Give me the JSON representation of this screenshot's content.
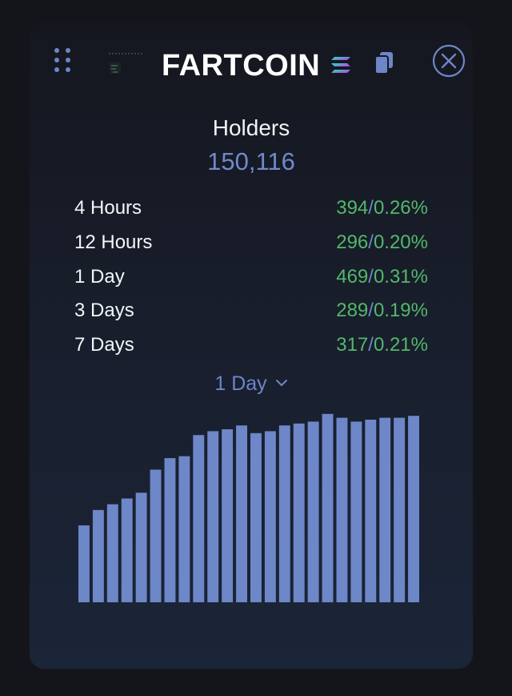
{
  "header": {
    "token_name": "FARTCOIN",
    "icons": {
      "drag": "drag-handle-icon",
      "logo": "token-logo",
      "chain": "solana-icon",
      "copy": "copy-icon",
      "close": "close-icon"
    }
  },
  "stat": {
    "title": "Holders",
    "value": "150,116"
  },
  "changes": [
    {
      "label": "4 Hours",
      "count": "394",
      "separator": "/",
      "percent": "0.26%"
    },
    {
      "label": "12 Hours",
      "count": "296",
      "separator": "/",
      "percent": "0.20%"
    },
    {
      "label": "1 Day",
      "count": "469",
      "separator": "/",
      "percent": "0.31%"
    },
    {
      "label": "3 Days",
      "count": "289",
      "separator": "/",
      "percent": "0.19%"
    },
    {
      "label": "7 Days",
      "count": "317",
      "separator": "/",
      "percent": "0.21%"
    }
  ],
  "period_select": {
    "selected": "1 Day"
  },
  "colors": {
    "accent": "#6c86c7",
    "positive": "#52b86a",
    "bar": "#6d87c8",
    "background": "#14151b"
  },
  "chart_data": {
    "type": "bar",
    "values": [
      40,
      48,
      51,
      54,
      57,
      69,
      75,
      76,
      87,
      89,
      90,
      92,
      88,
      89,
      92,
      93,
      94,
      98,
      96,
      94,
      95,
      96,
      96,
      97
    ],
    "ylim": [
      0,
      100
    ],
    "grid": false,
    "legend": "none"
  }
}
